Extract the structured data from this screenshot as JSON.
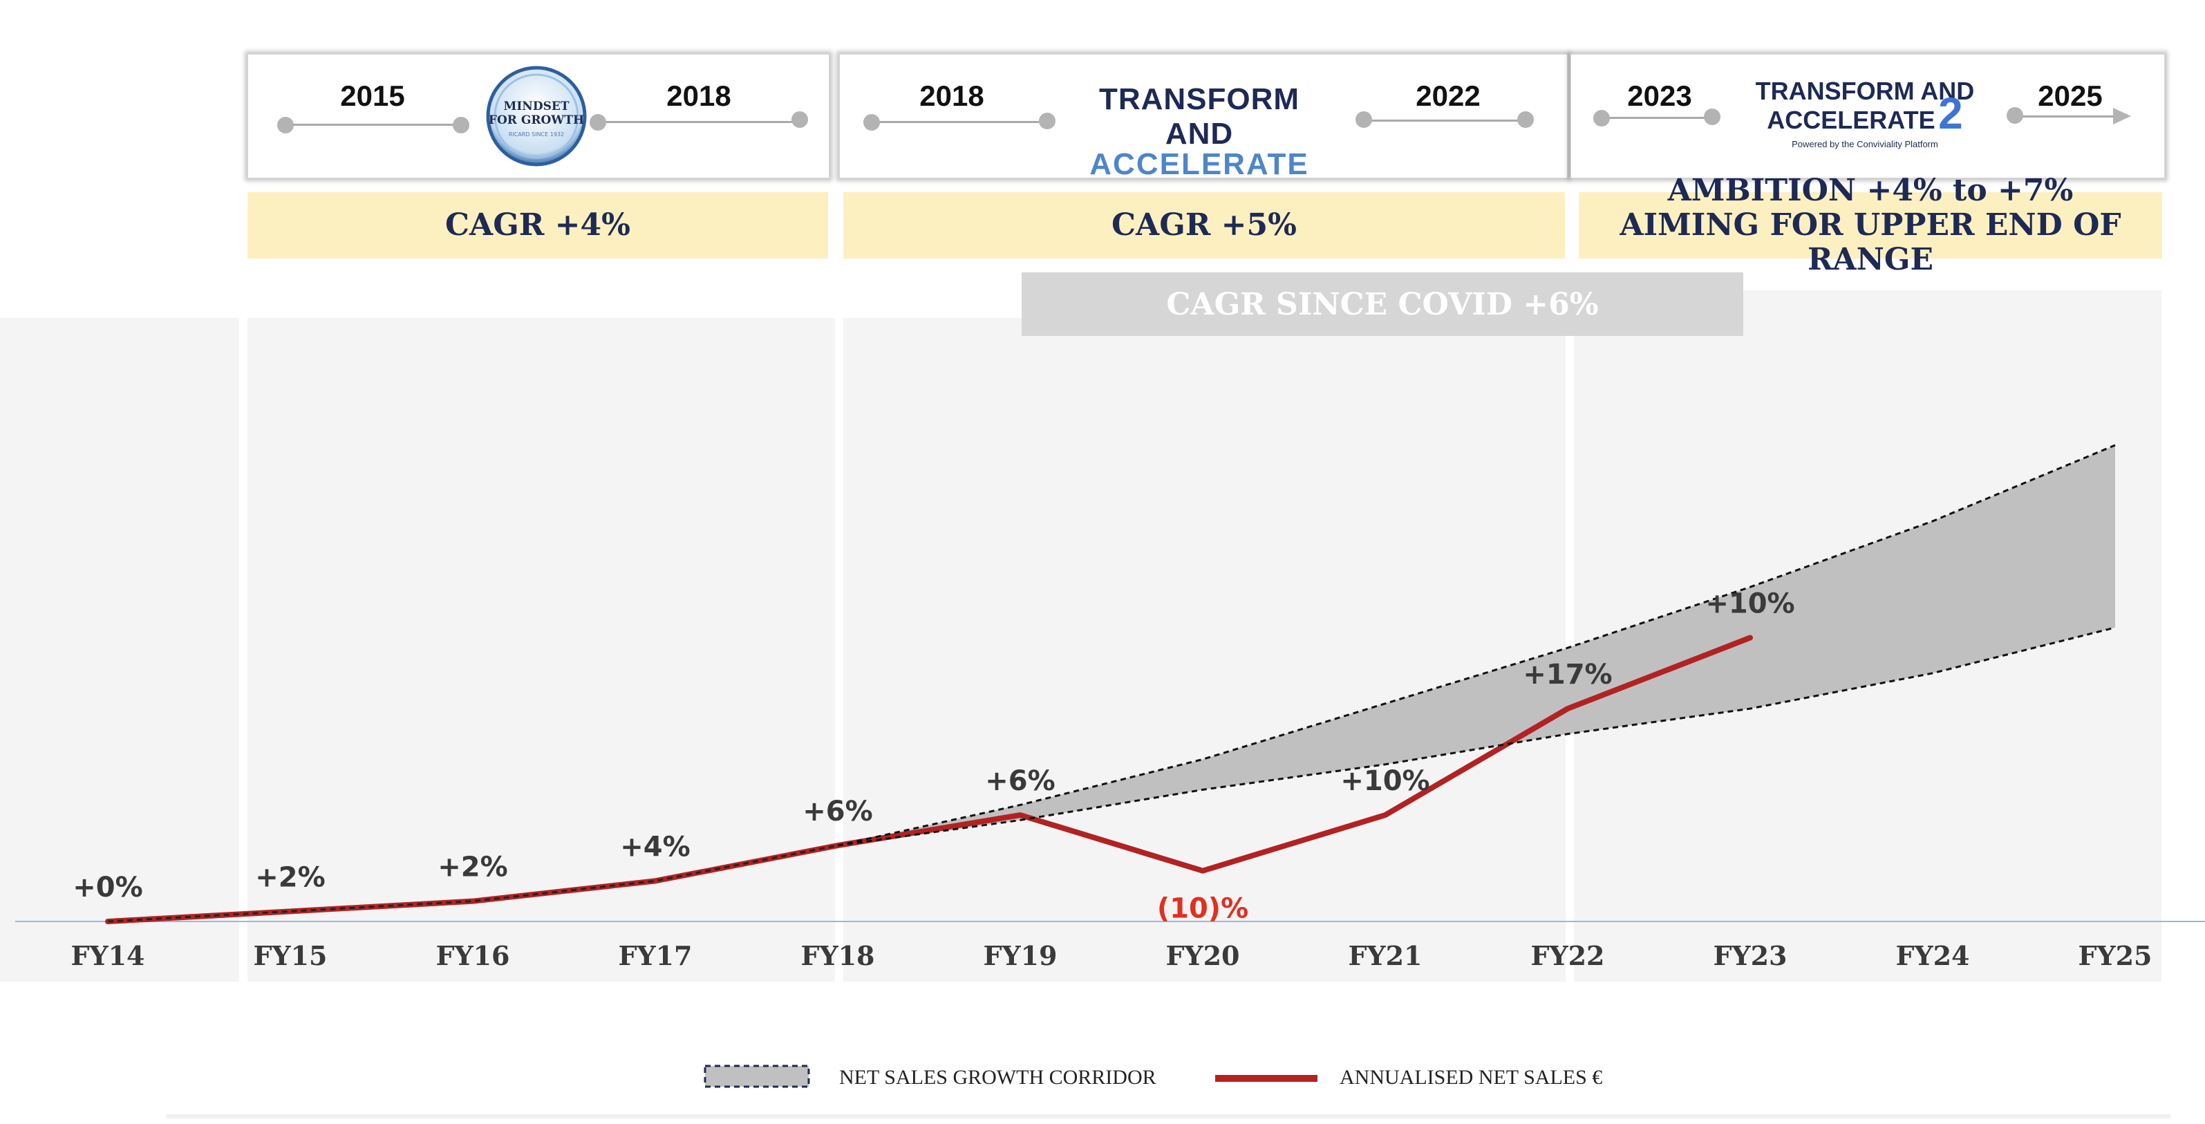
{
  "phases": [
    {
      "start_year": "2015",
      "end_year": "2018",
      "logo": {
        "lines": [
          "MINDSET",
          "FOR GROWTH"
        ],
        "tagline": "RICARD SINCE 1932"
      },
      "cagr_label": "CAGR +4%"
    },
    {
      "start_year": "2018",
      "end_year": "2022",
      "logo": {
        "line1": "TRANSFORM AND",
        "line2": "ACCELERATE"
      },
      "cagr_label": "CAGR +5%"
    },
    {
      "start_year": "2023",
      "end_year": "2025",
      "logo": {
        "line1": "TRANSFORM AND",
        "line2": "ACCELERATE",
        "suffix": "2",
        "powered_by": "Powered by the Conviviality Platform"
      },
      "cagr_label": "AMBITION +4% to +7% AIMING FOR UPPER END OF RANGE"
    }
  ],
  "covid_label": "CAGR SINCE COVID +6%",
  "colors": {
    "net_sales_line": "#b22222",
    "corridor_fill": "#c0c0c0",
    "cagr_box": "#fdf0c0",
    "covid_box": "#d6d6d6",
    "negative_label": "#e03020",
    "axis_text": "#3a3a3a",
    "title_navy": "#1e2a55"
  },
  "chart_data": {
    "type": "line",
    "categories": [
      "FY14",
      "FY15",
      "FY16",
      "FY17",
      "FY18",
      "FY19",
      "FY20",
      "FY21",
      "FY22",
      "FY23",
      "FY24",
      "FY25"
    ],
    "series": [
      {
        "name": "ANNUALISED NET SALES €",
        "values": [
          100,
          102,
          104,
          108,
          115,
          121,
          110,
          121,
          142,
          156,
          null,
          null
        ]
      }
    ],
    "corridor": {
      "name": "NET SALES GROWTH CORRIDOR",
      "categories": [
        "FY18",
        "FY19",
        "FY20",
        "FY21",
        "FY22",
        "FY23",
        "FY24",
        "FY25"
      ],
      "upper": [
        115,
        123,
        132,
        143,
        154,
        166,
        179,
        194
      ],
      "lower": [
        115,
        120,
        126,
        131,
        137,
        142,
        149,
        158
      ]
    },
    "growth_labels": [
      {
        "category": "FY14",
        "text": "+0%"
      },
      {
        "category": "FY15",
        "text": "+2%"
      },
      {
        "category": "FY16",
        "text": "+2%"
      },
      {
        "category": "FY17",
        "text": "+4%"
      },
      {
        "category": "FY18",
        "text": "+6%"
      },
      {
        "category": "FY19",
        "text": "+6%"
      },
      {
        "category": "FY20",
        "text": "(10)%",
        "negative": true
      },
      {
        "category": "FY21",
        "text": "+10%"
      },
      {
        "category": "FY22",
        "text": "+17%"
      },
      {
        "category": "FY23",
        "text": "+10%"
      }
    ],
    "legend": [
      {
        "label": "NET SALES GROWTH CORRIDOR",
        "kind": "corridor"
      },
      {
        "label": "ANNUALISED NET SALES €",
        "kind": "line"
      }
    ],
    "legend_position": "bottom-center",
    "ylim": [
      100,
      200
    ]
  }
}
